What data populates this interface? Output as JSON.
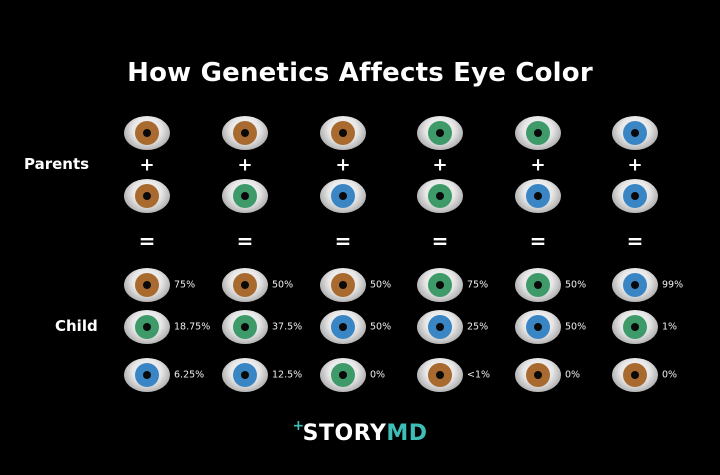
{
  "title": "How Genetics Affects Eye Color",
  "labels": {
    "parents": "Parents",
    "child": "Child"
  },
  "symbols": {
    "plus": "+",
    "equals": "="
  },
  "eye_colors": {
    "brown": "#a86a2e",
    "green": "#3f9a6a",
    "blue": "#3a86c4"
  },
  "columns": [
    {
      "parents": [
        "brown",
        "brown"
      ],
      "child": [
        {
          "color": "brown",
          "pct": "75%"
        },
        {
          "color": "green",
          "pct": "18.75%"
        },
        {
          "color": "blue",
          "pct": "6.25%"
        }
      ]
    },
    {
      "parents": [
        "brown",
        "green"
      ],
      "child": [
        {
          "color": "brown",
          "pct": "50%"
        },
        {
          "color": "green",
          "pct": "37.5%"
        },
        {
          "color": "blue",
          "pct": "12.5%"
        }
      ]
    },
    {
      "parents": [
        "brown",
        "blue"
      ],
      "child": [
        {
          "color": "brown",
          "pct": "50%"
        },
        {
          "color": "blue",
          "pct": "50%"
        },
        {
          "color": "green",
          "pct": "0%"
        }
      ]
    },
    {
      "parents": [
        "green",
        "green"
      ],
      "child": [
        {
          "color": "green",
          "pct": "75%"
        },
        {
          "color": "blue",
          "pct": "25%"
        },
        {
          "color": "brown",
          "pct": "<1%"
        }
      ]
    },
    {
      "parents": [
        "green",
        "blue"
      ],
      "child": [
        {
          "color": "green",
          "pct": "50%"
        },
        {
          "color": "blue",
          "pct": "50%"
        },
        {
          "color": "brown",
          "pct": "0%"
        }
      ]
    },
    {
      "parents": [
        "blue",
        "blue"
      ],
      "child": [
        {
          "color": "blue",
          "pct": "99%"
        },
        {
          "color": "green",
          "pct": "1%"
        },
        {
          "color": "brown",
          "pct": "0%"
        }
      ]
    }
  ],
  "logo": {
    "plus": "+",
    "story": "STORY",
    "md": "MD",
    "accent": "#3dbfb8"
  }
}
